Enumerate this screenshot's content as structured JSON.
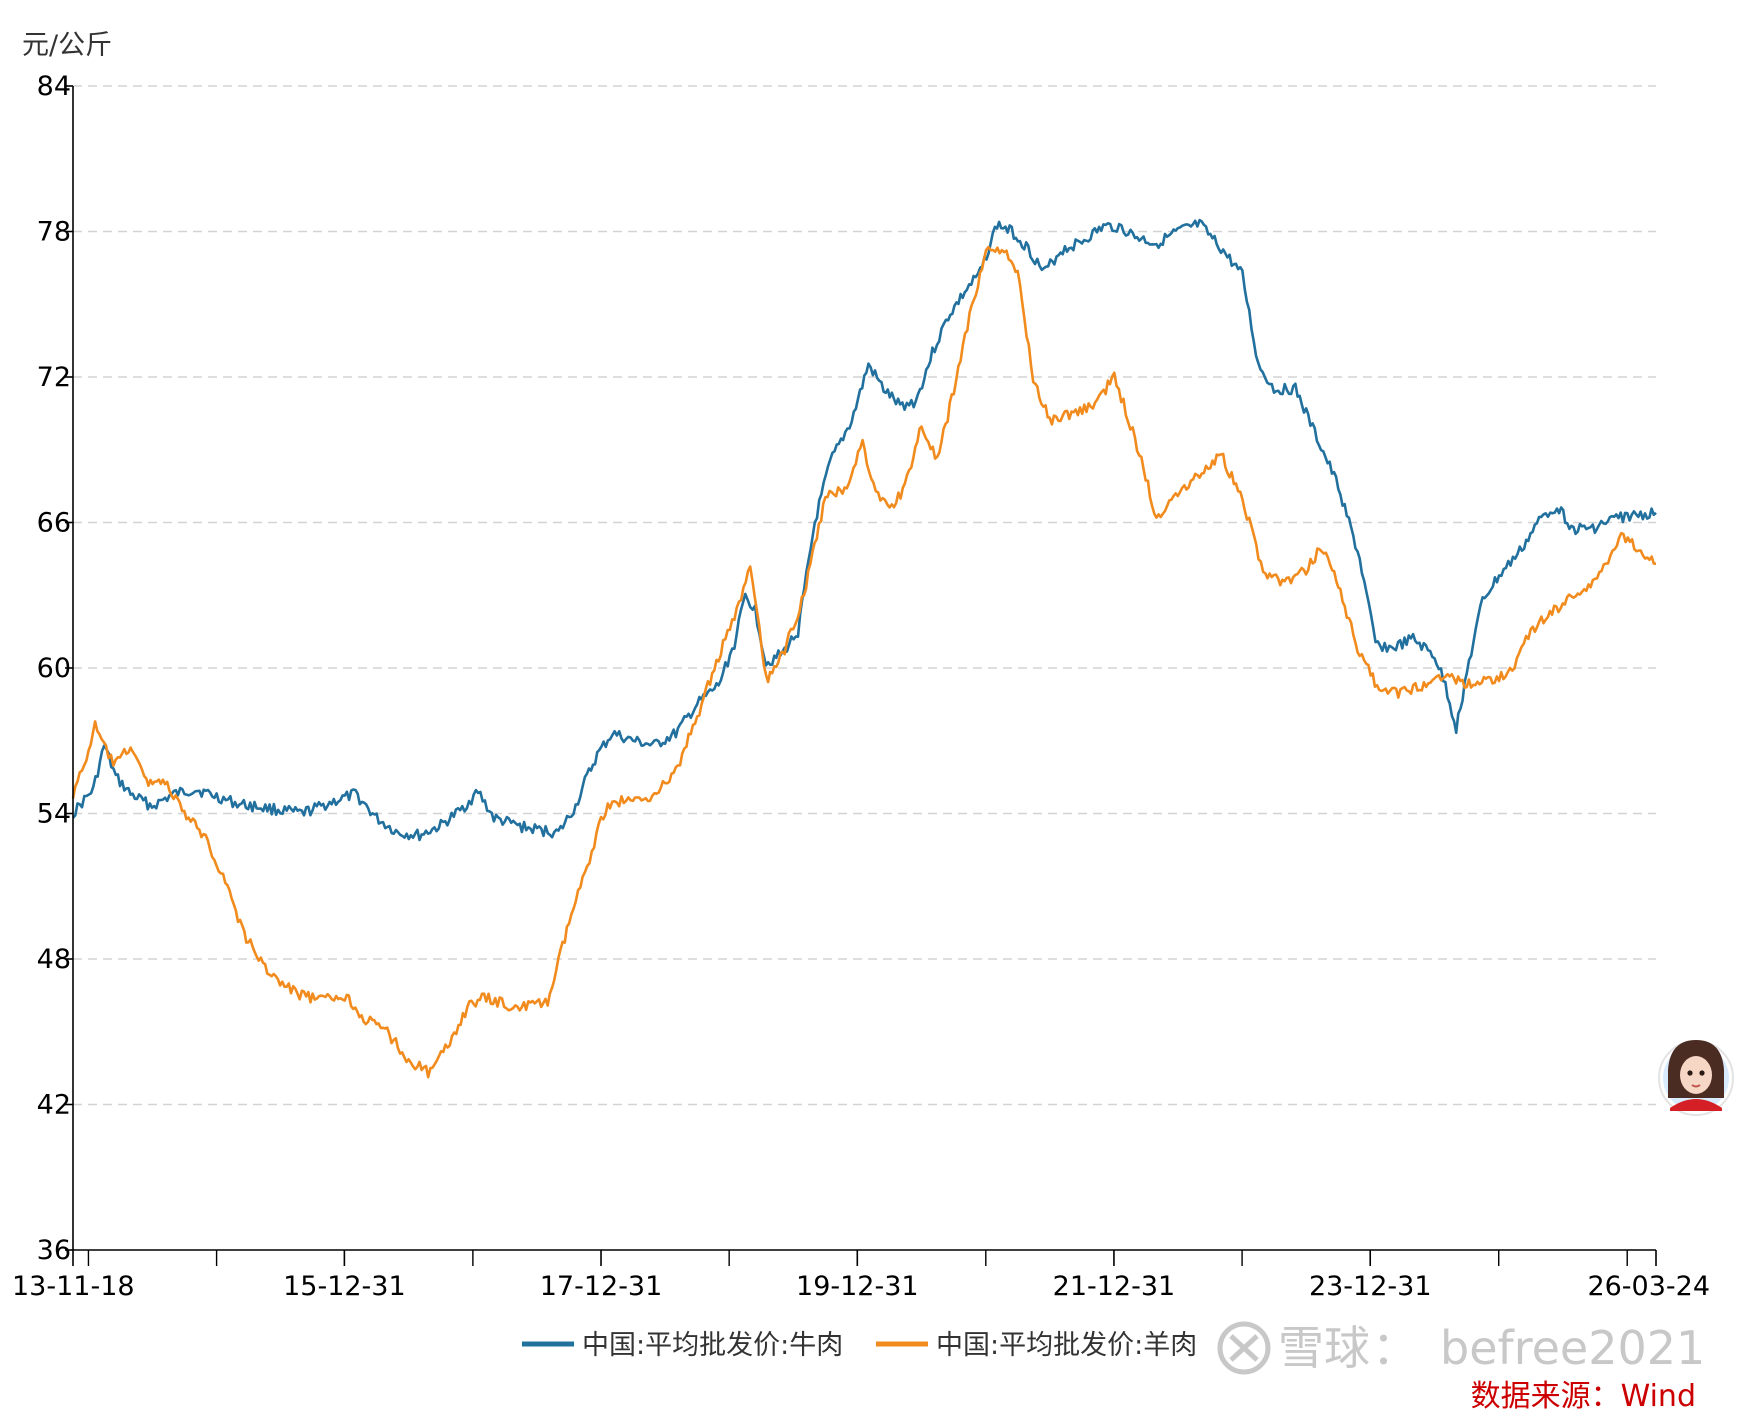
{
  "chart_data": {
    "type": "line",
    "title": "",
    "ylabel": "元/公斤",
    "xlabel": "",
    "ylim": [
      36,
      84
    ],
    "yticks": [
      36,
      42,
      48,
      54,
      60,
      66,
      72,
      78,
      84
    ],
    "xlim": [
      "2013-11-18",
      "2026-03-24"
    ],
    "xtick_labels": [
      "13-11-18",
      "15-12-31",
      "17-12-31",
      "19-12-31",
      "21-12-31",
      "23-12-31",
      "26-03-24"
    ],
    "xtick_dates": [
      "2013-11-18",
      "2015-12-31",
      "2017-12-31",
      "2019-12-31",
      "2021-12-31",
      "2023-12-31",
      "2026-03-24"
    ],
    "minor_tick_dates": [
      "2014-01-01",
      "2015-01-01",
      "2016-12-31",
      "2018-12-31",
      "2020-12-31",
      "2022-12-31",
      "2024-12-31",
      "2026-01-01"
    ],
    "grid": "horizontal dashed",
    "legend_position": "bottom-center",
    "series": [
      {
        "name": "中国:平均批发价:牛肉",
        "color": "#21709e",
        "points": [
          [
            "2013-11-18",
            54.0
          ],
          [
            "2014-01-15",
            55.0
          ],
          [
            "2014-02-15",
            56.8
          ],
          [
            "2014-03-20",
            55.5
          ],
          [
            "2014-05-01",
            54.8
          ],
          [
            "2014-07-01",
            54.3
          ],
          [
            "2014-09-01",
            54.8
          ],
          [
            "2014-11-01",
            55.0
          ],
          [
            "2015-01-01",
            54.7
          ],
          [
            "2015-03-01",
            54.4
          ],
          [
            "2015-06-01",
            54.2
          ],
          [
            "2015-09-01",
            54.0
          ],
          [
            "2015-12-01",
            54.5
          ],
          [
            "2016-02-01",
            54.8
          ],
          [
            "2016-04-01",
            53.8
          ],
          [
            "2016-06-01",
            53.2
          ],
          [
            "2016-08-01",
            53.1
          ],
          [
            "2016-10-01",
            53.5
          ],
          [
            "2016-12-01",
            54.2
          ],
          [
            "2017-01-15",
            54.9
          ],
          [
            "2017-03-01",
            53.8
          ],
          [
            "2017-06-01",
            53.4
          ],
          [
            "2017-09-01",
            53.2
          ],
          [
            "2017-10-20",
            54.3
          ],
          [
            "2017-11-15",
            55.3
          ],
          [
            "2017-12-20",
            56.4
          ],
          [
            "2018-02-01",
            57.3
          ],
          [
            "2018-04-01",
            57.0
          ],
          [
            "2018-06-01",
            56.8
          ],
          [
            "2018-08-01",
            57.3
          ],
          [
            "2018-10-01",
            58.5
          ],
          [
            "2018-12-01",
            59.3
          ],
          [
            "2019-01-15",
            61.0
          ],
          [
            "2019-02-15",
            63.0
          ],
          [
            "2019-03-15",
            62.4
          ],
          [
            "2019-04-15",
            60.2
          ],
          [
            "2019-06-01",
            60.6
          ],
          [
            "2019-07-15",
            61.5
          ],
          [
            "2019-09-01",
            66.0
          ],
          [
            "2019-10-15",
            68.5
          ],
          [
            "2019-12-15",
            70.2
          ],
          [
            "2020-02-01",
            72.5
          ],
          [
            "2020-03-15",
            71.5
          ],
          [
            "2020-05-01",
            70.8
          ],
          [
            "2020-06-15",
            71.0
          ],
          [
            "2020-08-01",
            73.0
          ],
          [
            "2020-09-15",
            74.5
          ],
          [
            "2020-11-01",
            75.5
          ],
          [
            "2020-12-15",
            76.3
          ],
          [
            "2021-02-01",
            78.3
          ],
          [
            "2021-03-15",
            78.0
          ],
          [
            "2021-05-01",
            77.3
          ],
          [
            "2021-06-15",
            76.3
          ],
          [
            "2021-08-01",
            77.2
          ],
          [
            "2021-10-01",
            77.6
          ],
          [
            "2021-12-01",
            78.2
          ],
          [
            "2022-01-15",
            78.2
          ],
          [
            "2022-03-01",
            77.8
          ],
          [
            "2022-05-01",
            77.5
          ],
          [
            "2022-07-01",
            78.0
          ],
          [
            "2022-09-01",
            78.3
          ],
          [
            "2022-11-01",
            77.3
          ],
          [
            "2023-01-01",
            76.2
          ],
          [
            "2023-02-15",
            72.5
          ],
          [
            "2023-04-01",
            71.5
          ],
          [
            "2023-06-01",
            71.5
          ],
          [
            "2023-08-01",
            69.5
          ],
          [
            "2023-10-01",
            67.5
          ],
          [
            "2023-12-01",
            64.5
          ],
          [
            "2024-01-15",
            61.0
          ],
          [
            "2024-03-01",
            60.8
          ],
          [
            "2024-05-01",
            61.2
          ],
          [
            "2024-07-01",
            60.5
          ],
          [
            "2024-08-01",
            59.3
          ],
          [
            "2024-09-01",
            57.5
          ],
          [
            "2024-10-01",
            59.8
          ],
          [
            "2024-11-15",
            62.8
          ],
          [
            "2025-01-01",
            63.8
          ],
          [
            "2025-03-01",
            64.8
          ],
          [
            "2025-05-01",
            66.2
          ],
          [
            "2025-06-15",
            66.7
          ],
          [
            "2025-08-01",
            65.7
          ],
          [
            "2025-10-01",
            65.8
          ],
          [
            "2025-12-01",
            66.2
          ],
          [
            "2026-03-24",
            66.4
          ]
        ]
      },
      {
        "name": "中国:平均批发价:羊肉",
        "color": "#f28b1e",
        "points": [
          [
            "2013-11-18",
            54.8
          ],
          [
            "2013-12-20",
            56.0
          ],
          [
            "2014-01-20",
            57.6
          ],
          [
            "2014-02-20",
            56.6
          ],
          [
            "2014-03-20",
            56.0
          ],
          [
            "2014-05-01",
            56.8
          ],
          [
            "2014-06-15",
            55.3
          ],
          [
            "2014-08-01",
            55.4
          ],
          [
            "2014-10-01",
            54.0
          ],
          [
            "2014-12-01",
            53.0
          ],
          [
            "2015-02-01",
            51.0
          ],
          [
            "2015-03-15",
            49.2
          ],
          [
            "2015-05-01",
            48.0
          ],
          [
            "2015-07-01",
            47.0
          ],
          [
            "2015-09-01",
            46.5
          ],
          [
            "2015-11-01",
            46.3
          ],
          [
            "2016-01-01",
            46.5
          ],
          [
            "2016-03-01",
            45.5
          ],
          [
            "2016-05-01",
            45.0
          ],
          [
            "2016-07-01",
            43.8
          ],
          [
            "2016-09-01",
            43.3
          ],
          [
            "2016-10-20",
            44.4
          ],
          [
            "2016-12-15",
            46.0
          ],
          [
            "2017-02-01",
            46.4
          ],
          [
            "2017-05-01",
            46.0
          ],
          [
            "2017-08-01",
            46.2
          ],
          [
            "2017-10-01",
            49.5
          ],
          [
            "2017-11-15",
            51.5
          ],
          [
            "2017-12-31",
            53.8
          ],
          [
            "2018-02-01",
            54.5
          ],
          [
            "2018-04-01",
            54.5
          ],
          [
            "2018-06-01",
            54.8
          ],
          [
            "2018-08-01",
            55.7
          ],
          [
            "2018-10-01",
            58.0
          ],
          [
            "2018-12-01",
            60.5
          ],
          [
            "2019-01-15",
            62.0
          ],
          [
            "2019-03-01",
            64.2
          ],
          [
            "2019-04-15",
            59.5
          ],
          [
            "2019-06-01",
            60.5
          ],
          [
            "2019-08-01",
            63.0
          ],
          [
            "2019-10-01",
            67.0
          ],
          [
            "2019-12-01",
            67.5
          ],
          [
            "2020-01-15",
            69.3
          ],
          [
            "2020-02-15",
            67.5
          ],
          [
            "2020-04-01",
            66.5
          ],
          [
            "2020-05-15",
            67.5
          ],
          [
            "2020-07-01",
            70.0
          ],
          [
            "2020-08-15",
            68.5
          ],
          [
            "2020-10-01",
            71.5
          ],
          [
            "2020-11-15",
            74.5
          ],
          [
            "2021-01-01",
            77.2
          ],
          [
            "2021-02-15",
            77.3
          ],
          [
            "2021-04-01",
            76.2
          ],
          [
            "2021-05-15",
            72.0
          ],
          [
            "2021-07-01",
            70.2
          ],
          [
            "2021-09-01",
            70.5
          ],
          [
            "2021-11-01",
            70.8
          ],
          [
            "2022-01-01",
            72.0
          ],
          [
            "2022-03-01",
            69.5
          ],
          [
            "2022-05-01",
            66.2
          ],
          [
            "2022-07-01",
            67.3
          ],
          [
            "2022-09-01",
            68.0
          ],
          [
            "2022-11-01",
            68.8
          ],
          [
            "2023-01-01",
            67.0
          ],
          [
            "2023-03-01",
            64.0
          ],
          [
            "2023-05-01",
            63.5
          ],
          [
            "2023-07-01",
            64.0
          ],
          [
            "2023-08-15",
            65.0
          ],
          [
            "2023-10-01",
            63.5
          ],
          [
            "2023-12-01",
            60.5
          ],
          [
            "2024-02-01",
            59.0
          ],
          [
            "2024-04-01",
            59.0
          ],
          [
            "2024-06-01",
            59.3
          ],
          [
            "2024-08-01",
            59.8
          ],
          [
            "2024-10-01",
            59.3
          ],
          [
            "2024-12-01",
            59.5
          ],
          [
            "2025-02-01",
            59.8
          ],
          [
            "2025-04-01",
            61.5
          ],
          [
            "2025-06-01",
            62.3
          ],
          [
            "2025-08-01",
            63.0
          ],
          [
            "2025-10-01",
            63.5
          ],
          [
            "2025-12-15",
            65.5
          ],
          [
            "2026-03-24",
            64.3
          ]
        ]
      }
    ]
  },
  "source_note": "数据来源：Wind",
  "watermark": {
    "brand": "雪球",
    "separator": "：",
    "user": "befree2021"
  },
  "avatar": {
    "semantic": "cartoon girl avatar with red scarf"
  }
}
